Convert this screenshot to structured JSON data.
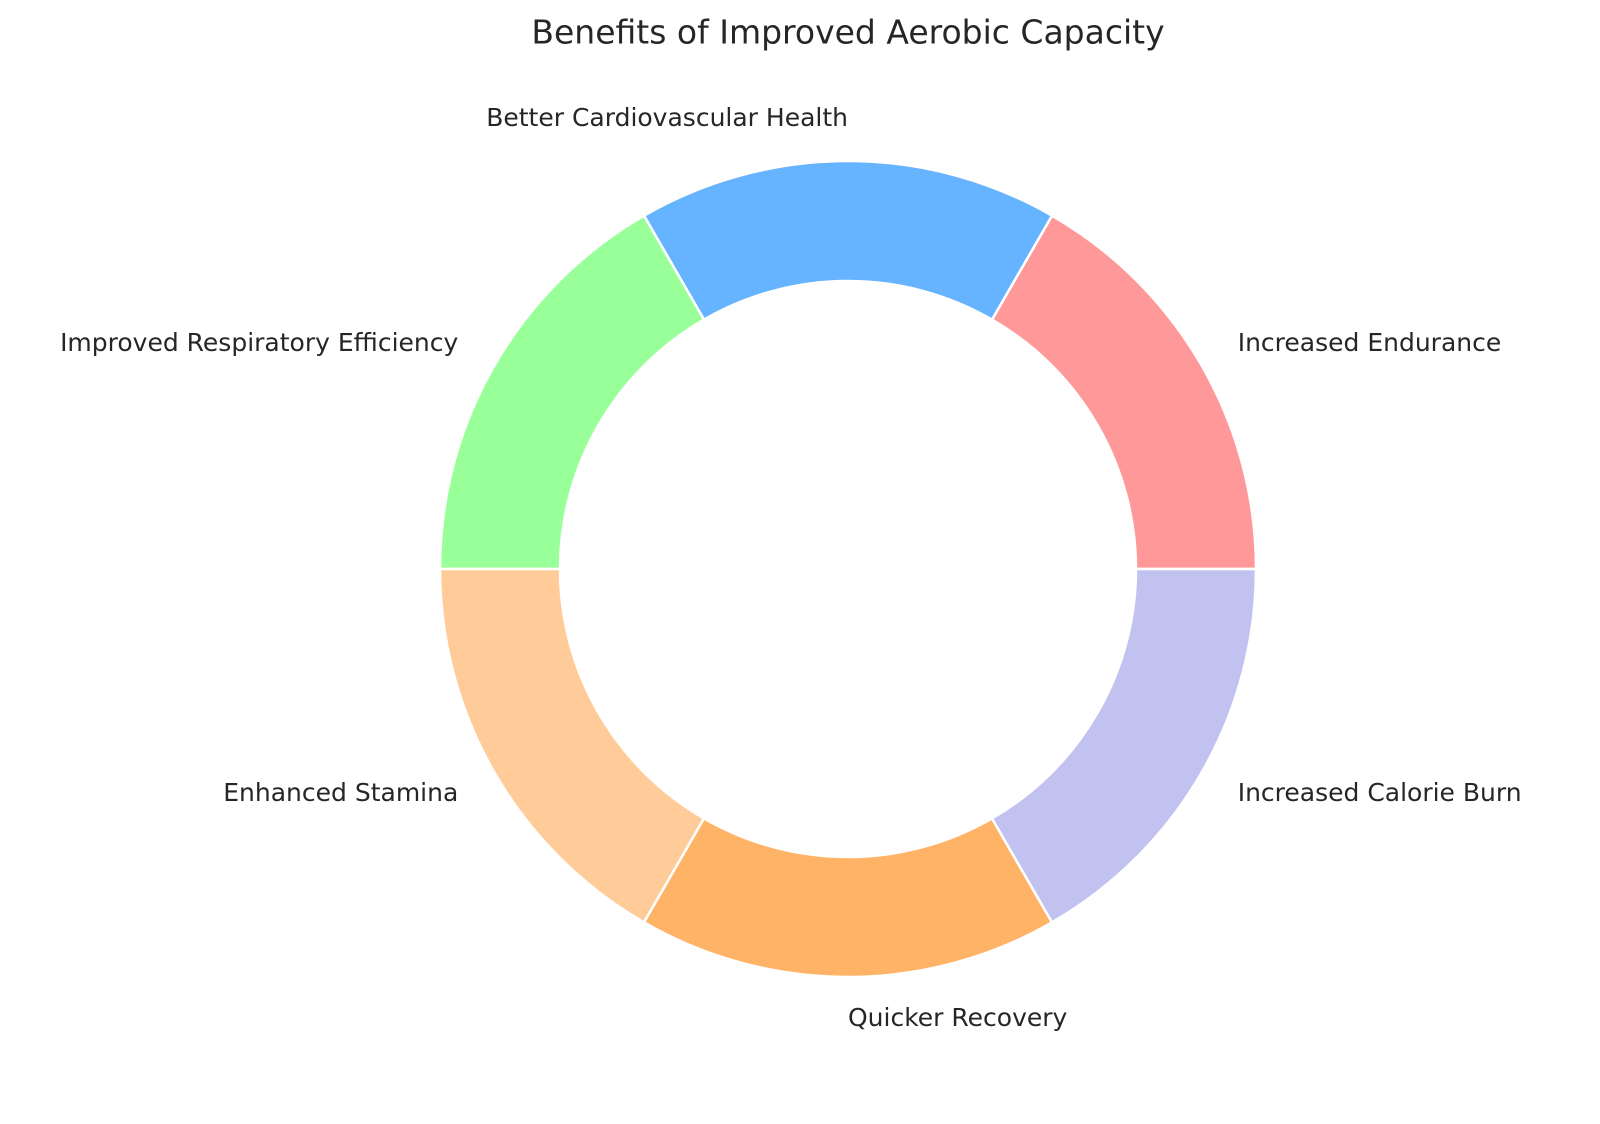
{
  "chart_data": {
    "type": "donut",
    "title": "Benefits of Improved Aerobic Capacity",
    "categories": [
      "Increased Endurance",
      "Better Cardiovascular Health",
      "Improved Respiratory Efficiency",
      "Enhanced Stamina",
      "Quicker Recovery",
      "Increased Calorie Burn"
    ],
    "values": [
      1,
      1,
      1,
      1,
      1,
      1
    ],
    "colors": [
      "#ff9999",
      "#66b3ff",
      "#99ff99",
      "#ffcc99",
      "#ffb366",
      "#c2c2f0"
    ]
  }
}
